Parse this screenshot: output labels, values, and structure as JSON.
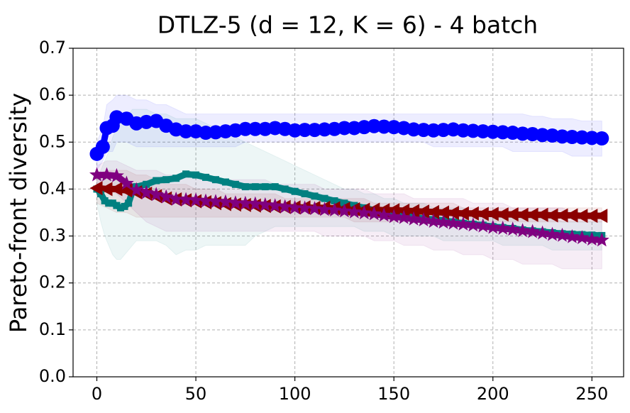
{
  "chart_data": {
    "type": "line",
    "title": "DTLZ-5 (d = 12, K = 6) - 4 batch",
    "xlabel": "",
    "ylabel": "Pareto-front diversity",
    "xlim": [
      -12,
      266
    ],
    "ylim": [
      0.0,
      0.7
    ],
    "xticks": [
      0,
      50,
      100,
      150,
      200,
      250
    ],
    "yticks": [
      0.0,
      0.1,
      0.2,
      0.3,
      0.4,
      0.5,
      0.6,
      0.7
    ],
    "xtick_labels": [
      "0",
      "50",
      "100",
      "150",
      "200",
      "250"
    ],
    "ytick_labels": [
      "0.0",
      "0.1",
      "0.2",
      "0.3",
      "0.4",
      "0.5",
      "0.6",
      "0.7"
    ],
    "grid": true,
    "series": [
      {
        "name": "blue-circle-series",
        "color": "#0000ff",
        "marker": "circle",
        "x": [
          0,
          3,
          5,
          8,
          10,
          15,
          20,
          25,
          30,
          35,
          40,
          45,
          50,
          55,
          60,
          65,
          70,
          75,
          80,
          85,
          90,
          95,
          100,
          105,
          110,
          115,
          120,
          125,
          130,
          135,
          140,
          145,
          150,
          155,
          160,
          165,
          170,
          175,
          180,
          185,
          190,
          195,
          200,
          205,
          210,
          215,
          220,
          225,
          230,
          235,
          240,
          245,
          250,
          255
        ],
        "y": [
          0.475,
          0.49,
          0.53,
          0.535,
          0.553,
          0.55,
          0.54,
          0.543,
          0.545,
          0.535,
          0.527,
          0.523,
          0.523,
          0.52,
          0.521,
          0.523,
          0.525,
          0.528,
          0.528,
          0.528,
          0.53,
          0.528,
          0.525,
          0.526,
          0.526,
          0.527,
          0.528,
          0.53,
          0.53,
          0.532,
          0.534,
          0.533,
          0.532,
          0.53,
          0.527,
          0.526,
          0.525,
          0.526,
          0.527,
          0.525,
          0.524,
          0.523,
          0.522,
          0.521,
          0.52,
          0.518,
          0.517,
          0.515,
          0.514,
          0.512,
          0.511,
          0.51,
          0.509,
          0.508
        ],
        "lower": [
          0.44,
          0.46,
          0.48,
          0.48,
          0.5,
          0.5,
          0.49,
          0.49,
          0.49,
          0.49,
          0.49,
          0.49,
          0.49,
          0.49,
          0.49,
          0.49,
          0.49,
          0.5,
          0.5,
          0.5,
          0.5,
          0.5,
          0.5,
          0.5,
          0.5,
          0.5,
          0.5,
          0.5,
          0.5,
          0.5,
          0.5,
          0.5,
          0.5,
          0.5,
          0.5,
          0.5,
          0.49,
          0.49,
          0.49,
          0.49,
          0.49,
          0.49,
          0.49,
          0.49,
          0.48,
          0.48,
          0.48,
          0.48,
          0.48,
          0.48,
          0.47,
          0.47,
          0.47,
          0.47
        ],
        "upper": [
          0.5,
          0.53,
          0.58,
          0.59,
          0.6,
          0.6,
          0.59,
          0.59,
          0.58,
          0.58,
          0.57,
          0.56,
          0.56,
          0.56,
          0.56,
          0.56,
          0.56,
          0.56,
          0.56,
          0.56,
          0.56,
          0.56,
          0.56,
          0.56,
          0.56,
          0.56,
          0.56,
          0.56,
          0.56,
          0.56,
          0.56,
          0.56,
          0.56,
          0.56,
          0.56,
          0.56,
          0.56,
          0.56,
          0.56,
          0.56,
          0.56,
          0.56,
          0.56,
          0.56,
          0.56,
          0.56,
          0.555,
          0.555,
          0.55,
          0.55,
          0.55,
          0.545,
          0.545,
          0.545
        ]
      },
      {
        "name": "teal-square-series",
        "color": "#008080",
        "marker": "square",
        "x": [
          0,
          2,
          4,
          6,
          8,
          10,
          12,
          14,
          16,
          18,
          20,
          25,
          30,
          35,
          40,
          45,
          50,
          55,
          60,
          65,
          70,
          75,
          80,
          85,
          90,
          95,
          100,
          105,
          110,
          115,
          120,
          125,
          130,
          135,
          140,
          145,
          150,
          155,
          160,
          165,
          170,
          175,
          180,
          185,
          190,
          195,
          200,
          205,
          210,
          215,
          220,
          225,
          230,
          235,
          240,
          245,
          250,
          255
        ],
        "y": [
          0.4,
          0.39,
          0.375,
          0.37,
          0.37,
          0.365,
          0.36,
          0.363,
          0.37,
          0.395,
          0.405,
          0.41,
          0.418,
          0.42,
          0.423,
          0.432,
          0.43,
          0.425,
          0.42,
          0.415,
          0.41,
          0.405,
          0.405,
          0.405,
          0.405,
          0.4,
          0.395,
          0.39,
          0.385,
          0.38,
          0.375,
          0.37,
          0.365,
          0.36,
          0.355,
          0.35,
          0.347,
          0.343,
          0.34,
          0.337,
          0.335,
          0.333,
          0.33,
          0.327,
          0.325,
          0.323,
          0.32,
          0.318,
          0.316,
          0.313,
          0.311,
          0.309,
          0.307,
          0.305,
          0.304,
          0.303,
          0.302,
          0.301
        ],
        "lower": [
          0.37,
          0.33,
          0.3,
          0.28,
          0.26,
          0.25,
          0.25,
          0.26,
          0.27,
          0.28,
          0.29,
          0.29,
          0.29,
          0.28,
          0.26,
          0.27,
          0.27,
          0.28,
          0.28,
          0.28,
          0.28,
          0.28,
          0.3,
          0.31,
          0.32,
          0.32,
          0.32,
          0.32,
          0.32,
          0.32,
          0.32,
          0.32,
          0.32,
          0.31,
          0.31,
          0.31,
          0.3,
          0.3,
          0.3,
          0.3,
          0.3,
          0.29,
          0.29,
          0.29,
          0.29,
          0.29,
          0.29,
          0.28,
          0.28,
          0.28,
          0.28,
          0.28,
          0.27,
          0.27,
          0.27,
          0.27,
          0.27,
          0.27
        ],
        "upper": [
          0.43,
          0.44,
          0.46,
          0.48,
          0.51,
          0.53,
          0.54,
          0.55,
          0.56,
          0.57,
          0.57,
          0.57,
          0.56,
          0.56,
          0.55,
          0.55,
          0.55,
          0.54,
          0.53,
          0.52,
          0.51,
          0.5,
          0.49,
          0.48,
          0.47,
          0.46,
          0.45,
          0.44,
          0.43,
          0.42,
          0.41,
          0.4,
          0.4,
          0.39,
          0.39,
          0.38,
          0.38,
          0.37,
          0.37,
          0.37,
          0.36,
          0.36,
          0.36,
          0.36,
          0.35,
          0.35,
          0.35,
          0.35,
          0.34,
          0.34,
          0.34,
          0.34,
          0.34,
          0.33,
          0.33,
          0.33,
          0.33,
          0.33
        ]
      },
      {
        "name": "darkred-triangle-series",
        "color": "#8b0000",
        "marker": "triangle-left",
        "x": [
          0,
          5,
          10,
          15,
          20,
          25,
          30,
          35,
          40,
          45,
          50,
          55,
          60,
          65,
          70,
          75,
          80,
          85,
          90,
          95,
          100,
          105,
          110,
          115,
          120,
          125,
          130,
          135,
          140,
          145,
          150,
          155,
          160,
          165,
          170,
          175,
          180,
          185,
          190,
          195,
          200,
          205,
          210,
          215,
          220,
          225,
          230,
          235,
          240,
          245,
          250,
          255
        ],
        "y": [
          0.402,
          0.4,
          0.4,
          0.397,
          0.393,
          0.39,
          0.385,
          0.38,
          0.378,
          0.376,
          0.374,
          0.372,
          0.37,
          0.368,
          0.367,
          0.366,
          0.365,
          0.364,
          0.363,
          0.362,
          0.361,
          0.361,
          0.36,
          0.36,
          0.359,
          0.358,
          0.357,
          0.356,
          0.356,
          0.355,
          0.355,
          0.354,
          0.353,
          0.352,
          0.351,
          0.35,
          0.349,
          0.348,
          0.348,
          0.347,
          0.347,
          0.346,
          0.346,
          0.345,
          0.345,
          0.345,
          0.344,
          0.344,
          0.344,
          0.343,
          0.343,
          0.343
        ],
        "lower": [
          0.37,
          0.36,
          0.35,
          0.35,
          0.34,
          0.34,
          0.34,
          0.34,
          0.34,
          0.34,
          0.34,
          0.34,
          0.34,
          0.34,
          0.34,
          0.34,
          0.34,
          0.34,
          0.34,
          0.34,
          0.34,
          0.34,
          0.34,
          0.34,
          0.34,
          0.34,
          0.33,
          0.33,
          0.33,
          0.33,
          0.33,
          0.33,
          0.33,
          0.33,
          0.33,
          0.33,
          0.33,
          0.33,
          0.33,
          0.33,
          0.33,
          0.33,
          0.33,
          0.33,
          0.33,
          0.33,
          0.33,
          0.33,
          0.33,
          0.33,
          0.33,
          0.33
        ],
        "upper": [
          0.43,
          0.44,
          0.44,
          0.44,
          0.43,
          0.43,
          0.42,
          0.41,
          0.41,
          0.41,
          0.4,
          0.4,
          0.4,
          0.39,
          0.39,
          0.39,
          0.39,
          0.39,
          0.39,
          0.38,
          0.38,
          0.38,
          0.38,
          0.38,
          0.38,
          0.38,
          0.38,
          0.38,
          0.37,
          0.37,
          0.37,
          0.37,
          0.37,
          0.37,
          0.37,
          0.37,
          0.37,
          0.36,
          0.36,
          0.36,
          0.36,
          0.36,
          0.36,
          0.36,
          0.36,
          0.36,
          0.36,
          0.36,
          0.36,
          0.36,
          0.36,
          0.36
        ]
      },
      {
        "name": "purple-star-series",
        "color": "#800080",
        "marker": "star",
        "x": [
          0,
          5,
          10,
          15,
          20,
          25,
          30,
          35,
          40,
          45,
          50,
          55,
          60,
          65,
          70,
          75,
          80,
          85,
          90,
          95,
          100,
          105,
          110,
          115,
          120,
          125,
          130,
          135,
          140,
          145,
          150,
          155,
          160,
          165,
          170,
          175,
          180,
          185,
          190,
          195,
          200,
          205,
          210,
          215,
          220,
          225,
          230,
          235,
          240,
          245,
          250,
          255
        ],
        "y": [
          0.43,
          0.43,
          0.428,
          0.412,
          0.398,
          0.392,
          0.388,
          0.383,
          0.378,
          0.377,
          0.376,
          0.374,
          0.373,
          0.372,
          0.37,
          0.369,
          0.368,
          0.366,
          0.364,
          0.362,
          0.36,
          0.359,
          0.358,
          0.356,
          0.355,
          0.353,
          0.351,
          0.349,
          0.347,
          0.344,
          0.341,
          0.339,
          0.336,
          0.334,
          0.331,
          0.329,
          0.327,
          0.325,
          0.323,
          0.321,
          0.318,
          0.316,
          0.314,
          0.311,
          0.309,
          0.306,
          0.303,
          0.301,
          0.298,
          0.296,
          0.293,
          0.291
        ],
        "lower": [
          0.41,
          0.4,
          0.39,
          0.37,
          0.35,
          0.33,
          0.32,
          0.31,
          0.31,
          0.31,
          0.31,
          0.31,
          0.31,
          0.31,
          0.31,
          0.31,
          0.31,
          0.31,
          0.31,
          0.31,
          0.31,
          0.31,
          0.31,
          0.3,
          0.3,
          0.3,
          0.3,
          0.3,
          0.29,
          0.29,
          0.29,
          0.28,
          0.28,
          0.28,
          0.27,
          0.27,
          0.27,
          0.26,
          0.26,
          0.26,
          0.25,
          0.25,
          0.25,
          0.24,
          0.24,
          0.24,
          0.24,
          0.23,
          0.23,
          0.23,
          0.23,
          0.23
        ],
        "upper": [
          0.45,
          0.46,
          0.46,
          0.45,
          0.44,
          0.44,
          0.44,
          0.43,
          0.43,
          0.43,
          0.43,
          0.43,
          0.42,
          0.42,
          0.42,
          0.42,
          0.42,
          0.42,
          0.41,
          0.41,
          0.41,
          0.41,
          0.41,
          0.4,
          0.4,
          0.4,
          0.4,
          0.4,
          0.39,
          0.39,
          0.39,
          0.39,
          0.38,
          0.38,
          0.38,
          0.38,
          0.38,
          0.38,
          0.37,
          0.37,
          0.37,
          0.37,
          0.36,
          0.36,
          0.36,
          0.36,
          0.36,
          0.36,
          0.35,
          0.35,
          0.35,
          0.35
        ]
      }
    ]
  }
}
